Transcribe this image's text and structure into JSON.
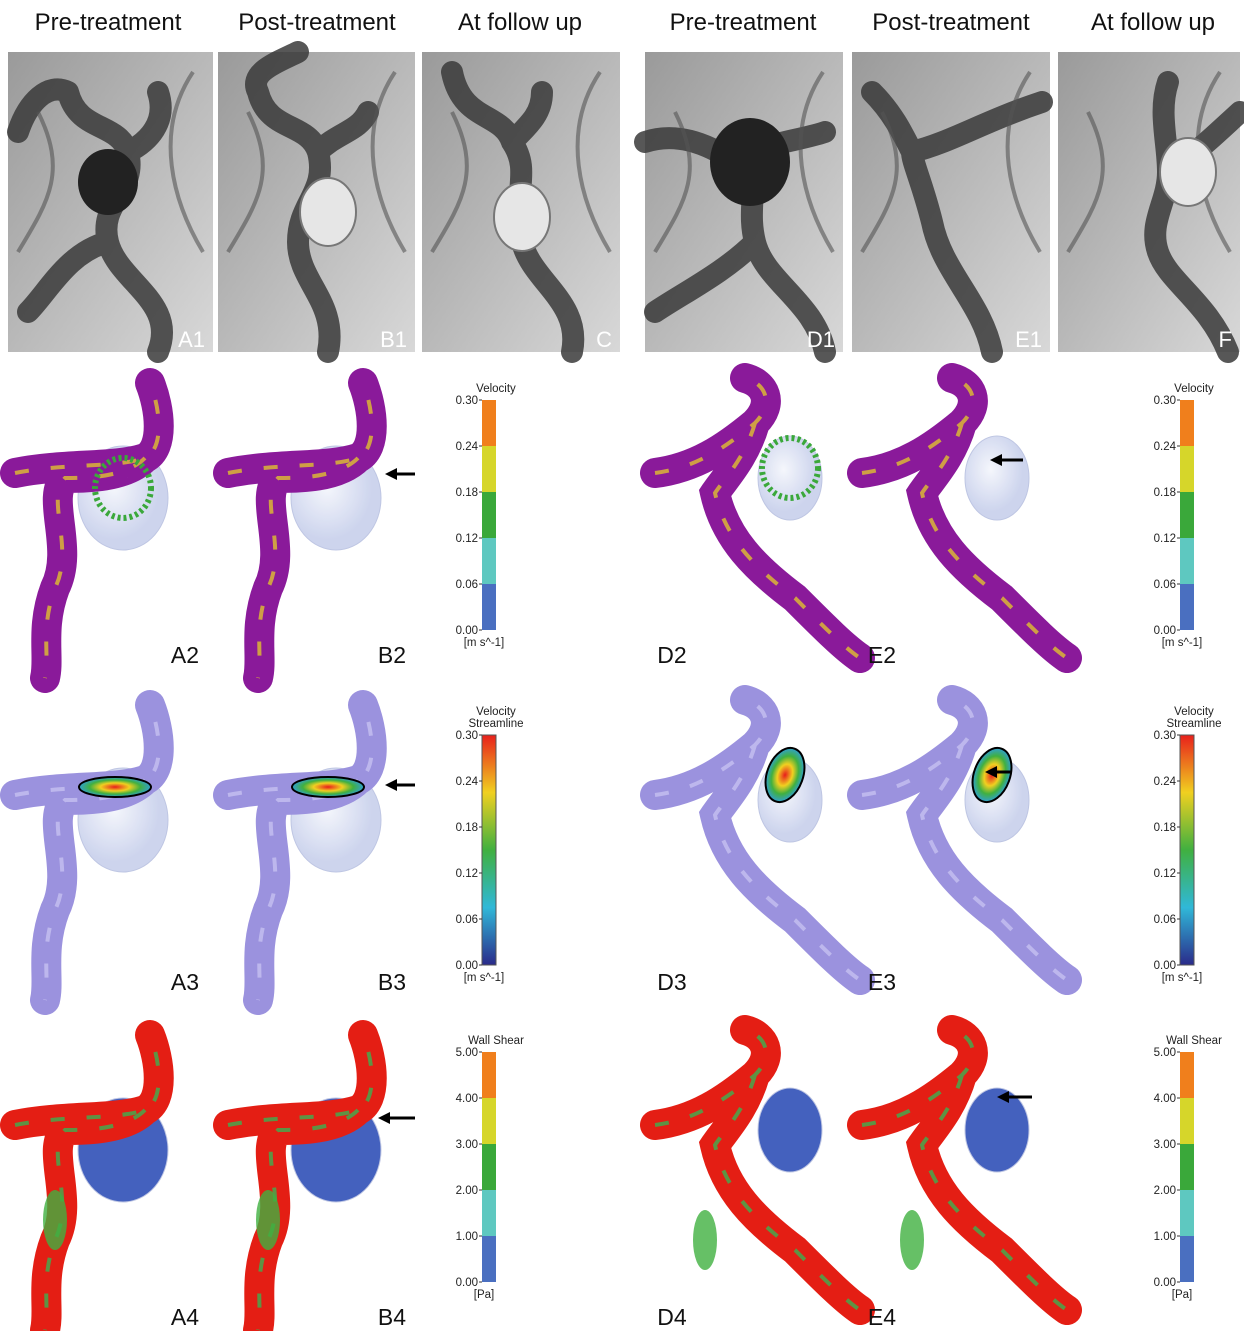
{
  "headers": [
    "Pre-treatment",
    "Post-treatment",
    "At follow up",
    "Pre-treatment",
    "Post-treatment",
    "At follow up"
  ],
  "angiograms": [
    "A1",
    "B1",
    "C",
    "D1",
    "E1",
    "F"
  ],
  "rows": [
    {
      "panels": [
        "A2",
        "B2",
        "D2",
        "E2"
      ],
      "colorbars": [
        {
          "title": [
            "Velocity"
          ],
          "ticks": [
            "0.30",
            "0.24",
            "0.18",
            "0.12",
            "0.06",
            "0.00"
          ],
          "unit": "[m s^-1]"
        },
        {
          "title": [
            "Velocity"
          ],
          "ticks": [
            "0.30",
            "0.24",
            "0.18",
            "0.12",
            "0.06",
            "0.00"
          ],
          "unit": "[m s^-1]"
        }
      ]
    },
    {
      "panels": [
        "A3",
        "B3",
        "D3",
        "E3"
      ],
      "colorbars": [
        {
          "title": [
            "Velocity",
            "Streamline"
          ],
          "ticks": [
            "0.30",
            "0.24",
            "0.18",
            "0.12",
            "0.06",
            "0.00"
          ],
          "unit": "[m s^-1]"
        },
        {
          "title": [
            "Velocity",
            "Streamline"
          ],
          "ticks": [
            "0.30",
            "0.24",
            "0.18",
            "0.12",
            "0.06",
            "0.00"
          ],
          "unit": "[m s^-1]"
        }
      ]
    },
    {
      "panels": [
        "A4",
        "B4",
        "D4",
        "E4"
      ],
      "colorbars": [
        {
          "title": [
            "Wall Shear"
          ],
          "ticks": [
            "5.00",
            "4.00",
            "3.00",
            "2.00",
            "1.00",
            "0.00"
          ],
          "unit": "[Pa]"
        },
        {
          "title": [
            "Wall Shear"
          ],
          "ticks": [
            "5.00",
            "4.00",
            "3.00",
            "2.00",
            "1.00",
            "0.00"
          ],
          "unit": "[Pa]"
        }
      ]
    }
  ]
}
